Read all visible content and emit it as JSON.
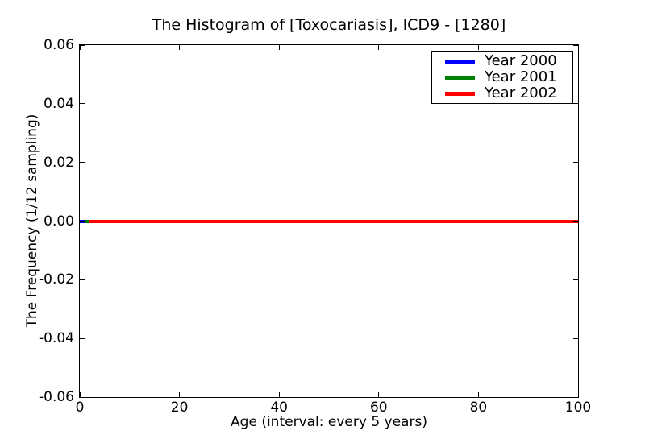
{
  "chart_data": {
    "type": "line",
    "title": "The Histogram of [Toxocariasis], ICD9 - [1280]",
    "xlabel": "Age (interval: every 5 years)",
    "ylabel": "The Frequency (1/12 sampling)",
    "xlim": [
      0,
      100
    ],
    "ylim": [
      -0.06,
      0.06
    ],
    "x_ticks": [
      0,
      20,
      40,
      60,
      80,
      100
    ],
    "x_tick_labels": [
      "0",
      "20",
      "40",
      "60",
      "80",
      "100"
    ],
    "y_ticks": [
      0.06,
      0.04,
      0.02,
      0,
      -0.02,
      -0.04,
      -0.06
    ],
    "y_tick_labels": [
      "0.06",
      "0.04",
      "0.02",
      "0.00",
      "-0.02",
      "-0.04",
      "-0.06"
    ],
    "grid": false,
    "legend_position": "upper right",
    "x": [
      0,
      5,
      10,
      15,
      20,
      25,
      30,
      35,
      40,
      45,
      50,
      55,
      60,
      65,
      70,
      75,
      80,
      85,
      90,
      95,
      100
    ],
    "series": [
      {
        "name": "Year 2000",
        "color": "#0000ff",
        "values": [
          0,
          0,
          0,
          0,
          0,
          0,
          0,
          0,
          0,
          0,
          0,
          0,
          0,
          0,
          0,
          0,
          0,
          0,
          0,
          0,
          0
        ]
      },
      {
        "name": "Year 2001",
        "color": "#008000",
        "values": [
          0,
          0,
          0,
          0,
          0,
          0,
          0,
          0,
          0,
          0,
          0,
          0,
          0,
          0,
          0,
          0,
          0,
          0,
          0,
          0,
          0
        ]
      },
      {
        "name": "Year 2002",
        "color": "#ff0000",
        "values": [
          0,
          0,
          0,
          0,
          0,
          0,
          0,
          0,
          0,
          0,
          0,
          0,
          0,
          0,
          0,
          0,
          0,
          0,
          0,
          0,
          0
        ]
      }
    ]
  },
  "colors": {
    "background": "#ffffff",
    "axis": "#000000",
    "text": "#000000"
  }
}
